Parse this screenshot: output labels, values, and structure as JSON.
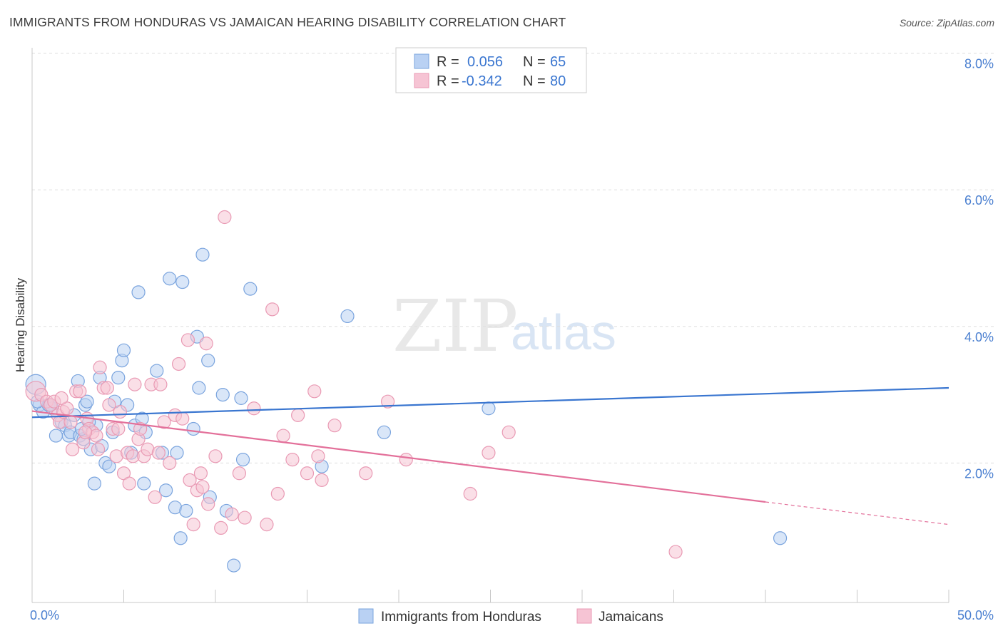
{
  "title": "IMMIGRANTS FROM HONDURAS VS JAMAICAN HEARING DISABILITY CORRELATION CHART",
  "source": "Source: ZipAtlas.com",
  "watermark": {
    "part1": "ZIP",
    "part2": "atlas"
  },
  "legend": {
    "r_label": "R =",
    "n_label": "N =",
    "rows": [
      {
        "r": "0.056",
        "n": "65"
      },
      {
        "r": "-0.342",
        "n": "80"
      }
    ]
  },
  "colors": {
    "blue": "#3a76d0",
    "blue_fill": "#b9d1f3",
    "blue_stroke": "#7aa4de",
    "pink": "#e3709a",
    "pink_fill": "#f6c4d4",
    "pink_stroke": "#e99ab4",
    "value_text": "#3a76d0",
    "grid": "#dddddd"
  },
  "chart_data": {
    "type": "scatter",
    "ylabel": "Hearing Disability",
    "xlim": [
      0,
      50
    ],
    "ylim": [
      0,
      8
    ],
    "x_tick_labels": [
      "0.0%",
      "50.0%"
    ],
    "y_ticks": [
      2,
      4,
      6,
      8
    ],
    "y_tick_labels": [
      "2.0%",
      "4.0%",
      "6.0%",
      "8.0%"
    ],
    "grid": "horizontal dashed",
    "legend_position": "top-center",
    "series": [
      {
        "name": "Immigrants from Honduras",
        "color": "blue",
        "trend": {
          "x": [
            0,
            50
          ],
          "y": [
            2.67,
            3.1
          ]
        },
        "points": [
          [
            0.2,
            3.15
          ],
          [
            0.4,
            2.85
          ],
          [
            0.6,
            2.75
          ],
          [
            0.9,
            2.85
          ],
          [
            1.1,
            2.8
          ],
          [
            1.3,
            2.4
          ],
          [
            1.6,
            2.6
          ],
          [
            1.8,
            2.55
          ],
          [
            2.0,
            2.4
          ],
          [
            2.1,
            2.45
          ],
          [
            2.3,
            2.7
          ],
          [
            2.5,
            3.2
          ],
          [
            2.6,
            2.4
          ],
          [
            2.8,
            2.35
          ],
          [
            2.9,
            2.85
          ],
          [
            3.0,
            2.9
          ],
          [
            3.2,
            2.2
          ],
          [
            3.4,
            1.7
          ],
          [
            3.5,
            2.55
          ],
          [
            3.7,
            3.25
          ],
          [
            3.8,
            2.25
          ],
          [
            4.0,
            2.0
          ],
          [
            4.2,
            1.95
          ],
          [
            4.5,
            2.9
          ],
          [
            4.7,
            3.25
          ],
          [
            4.9,
            3.5
          ],
          [
            5.0,
            3.65
          ],
          [
            5.2,
            2.85
          ],
          [
            5.4,
            2.15
          ],
          [
            5.6,
            2.55
          ],
          [
            5.8,
            4.5
          ],
          [
            6.0,
            2.65
          ],
          [
            6.2,
            2.45
          ],
          [
            6.1,
            1.7
          ],
          [
            6.8,
            3.35
          ],
          [
            7.1,
            2.15
          ],
          [
            7.3,
            1.6
          ],
          [
            7.5,
            4.7
          ],
          [
            7.8,
            1.35
          ],
          [
            7.9,
            2.15
          ],
          [
            8.1,
            0.9
          ],
          [
            8.2,
            4.65
          ],
          [
            8.4,
            1.3
          ],
          [
            8.8,
            2.5
          ],
          [
            9.0,
            3.85
          ],
          [
            9.1,
            3.1
          ],
          [
            9.3,
            5.05
          ],
          [
            9.6,
            3.5
          ],
          [
            9.7,
            1.5
          ],
          [
            10.4,
            3.0
          ],
          [
            10.6,
            1.3
          ],
          [
            11.0,
            0.5
          ],
          [
            11.4,
            2.95
          ],
          [
            11.5,
            2.05
          ],
          [
            11.9,
            4.55
          ],
          [
            15.8,
            1.95
          ],
          [
            17.2,
            4.15
          ],
          [
            19.2,
            2.45
          ],
          [
            24.9,
            2.8
          ],
          [
            40.8,
            0.9
          ],
          [
            0.3,
            2.9
          ],
          [
            1.0,
            2.85
          ],
          [
            2.7,
            2.5
          ],
          [
            4.4,
            2.45
          ],
          [
            3.1,
            2.6
          ]
        ]
      },
      {
        "name": "Jamaicans",
        "color": "pink",
        "trend": {
          "x": [
            0,
            40
          ],
          "y": [
            2.76,
            1.43
          ]
        },
        "trend_ext": {
          "x": [
            40,
            50
          ],
          "y": [
            1.43,
            1.1
          ]
        },
        "points": [
          [
            0.2,
            3.05
          ],
          [
            0.5,
            3.0
          ],
          [
            0.8,
            2.9
          ],
          [
            1.0,
            2.85
          ],
          [
            1.2,
            2.9
          ],
          [
            1.4,
            2.7
          ],
          [
            1.5,
            2.6
          ],
          [
            1.7,
            2.75
          ],
          [
            1.9,
            2.8
          ],
          [
            2.1,
            2.6
          ],
          [
            2.2,
            2.2
          ],
          [
            2.4,
            3.05
          ],
          [
            2.6,
            3.05
          ],
          [
            2.8,
            2.3
          ],
          [
            3.0,
            2.65
          ],
          [
            3.1,
            2.5
          ],
          [
            3.3,
            2.45
          ],
          [
            3.5,
            2.4
          ],
          [
            3.6,
            2.2
          ],
          [
            3.7,
            3.4
          ],
          [
            3.9,
            3.1
          ],
          [
            4.1,
            3.1
          ],
          [
            4.2,
            2.85
          ],
          [
            4.4,
            2.5
          ],
          [
            4.6,
            2.1
          ],
          [
            4.7,
            2.5
          ],
          [
            4.8,
            2.75
          ],
          [
            5.0,
            1.85
          ],
          [
            5.2,
            2.15
          ],
          [
            5.3,
            1.7
          ],
          [
            5.5,
            2.1
          ],
          [
            5.6,
            3.15
          ],
          [
            5.8,
            2.35
          ],
          [
            5.9,
            2.5
          ],
          [
            6.1,
            2.1
          ],
          [
            6.3,
            2.2
          ],
          [
            6.5,
            3.15
          ],
          [
            6.7,
            1.5
          ],
          [
            6.9,
            2.15
          ],
          [
            7.0,
            3.15
          ],
          [
            7.2,
            2.6
          ],
          [
            7.5,
            2.0
          ],
          [
            7.8,
            2.7
          ],
          [
            8.0,
            3.45
          ],
          [
            8.2,
            2.65
          ],
          [
            8.5,
            3.8
          ],
          [
            8.6,
            1.75
          ],
          [
            8.8,
            1.1
          ],
          [
            9.0,
            1.6
          ],
          [
            9.2,
            1.85
          ],
          [
            9.3,
            1.65
          ],
          [
            9.5,
            3.75
          ],
          [
            9.6,
            1.4
          ],
          [
            10.0,
            2.1
          ],
          [
            10.3,
            1.05
          ],
          [
            10.5,
            5.6
          ],
          [
            10.9,
            1.25
          ],
          [
            11.3,
            1.85
          ],
          [
            11.6,
            1.2
          ],
          [
            12.1,
            2.8
          ],
          [
            12.8,
            1.1
          ],
          [
            13.1,
            4.25
          ],
          [
            13.4,
            1.55
          ],
          [
            13.7,
            2.4
          ],
          [
            14.2,
            2.05
          ],
          [
            14.5,
            2.7
          ],
          [
            15.0,
            1.85
          ],
          [
            15.4,
            3.05
          ],
          [
            15.6,
            2.1
          ],
          [
            15.8,
            1.75
          ],
          [
            16.5,
            2.55
          ],
          [
            18.2,
            1.85
          ],
          [
            19.4,
            2.9
          ],
          [
            20.4,
            2.05
          ],
          [
            23.9,
            1.55
          ],
          [
            24.9,
            2.15
          ],
          [
            26.0,
            2.45
          ],
          [
            35.1,
            0.7
          ],
          [
            1.6,
            2.95
          ],
          [
            2.9,
            2.45
          ]
        ]
      }
    ]
  },
  "bottom_legend": [
    {
      "label": "Immigrants from Honduras",
      "color": "blue"
    },
    {
      "label": "Jamaicans",
      "color": "pink"
    }
  ]
}
